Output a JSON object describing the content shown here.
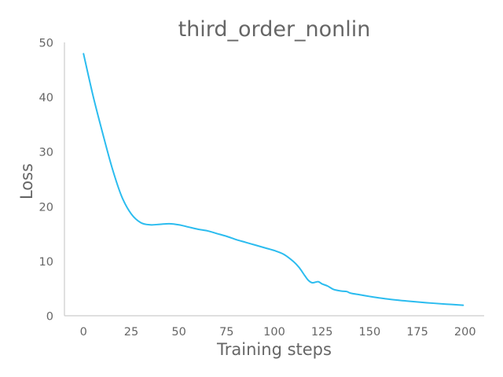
{
  "chart_data": {
    "type": "line",
    "title": "third_order_nonlin",
    "xlabel": "Training steps",
    "ylabel": "Loss",
    "xlim": [
      -10,
      210
    ],
    "ylim": [
      0,
      50
    ],
    "xticks": [
      0,
      25,
      50,
      75,
      100,
      125,
      150,
      175,
      200
    ],
    "yticks": [
      0,
      10,
      20,
      30,
      40,
      50
    ],
    "grid": false,
    "line_color": "#2bbcef",
    "series": [
      {
        "x": [
          0,
          5,
          10,
          15,
          20,
          25,
          30,
          35,
          40,
          45,
          50,
          55,
          60,
          65,
          70,
          75,
          80,
          85,
          90,
          95,
          100,
          105,
          110,
          113,
          116,
          118,
          120,
          123,
          125,
          128,
          131,
          135,
          138,
          140,
          145,
          150,
          160,
          170,
          180,
          190,
          199
        ],
        "values": [
          48.0,
          40.3,
          33.5,
          27.1,
          21.9,
          18.7,
          17.1,
          16.7,
          16.8,
          16.9,
          16.7,
          16.3,
          15.9,
          15.6,
          15.1,
          14.6,
          14.0,
          13.5,
          13.0,
          12.5,
          12.0,
          11.3,
          10.0,
          8.9,
          7.4,
          6.5,
          6.1,
          6.3,
          5.9,
          5.5,
          4.9,
          4.6,
          4.5,
          4.2,
          3.9,
          3.6,
          3.1,
          2.75,
          2.45,
          2.2,
          2.0
        ]
      }
    ]
  }
}
